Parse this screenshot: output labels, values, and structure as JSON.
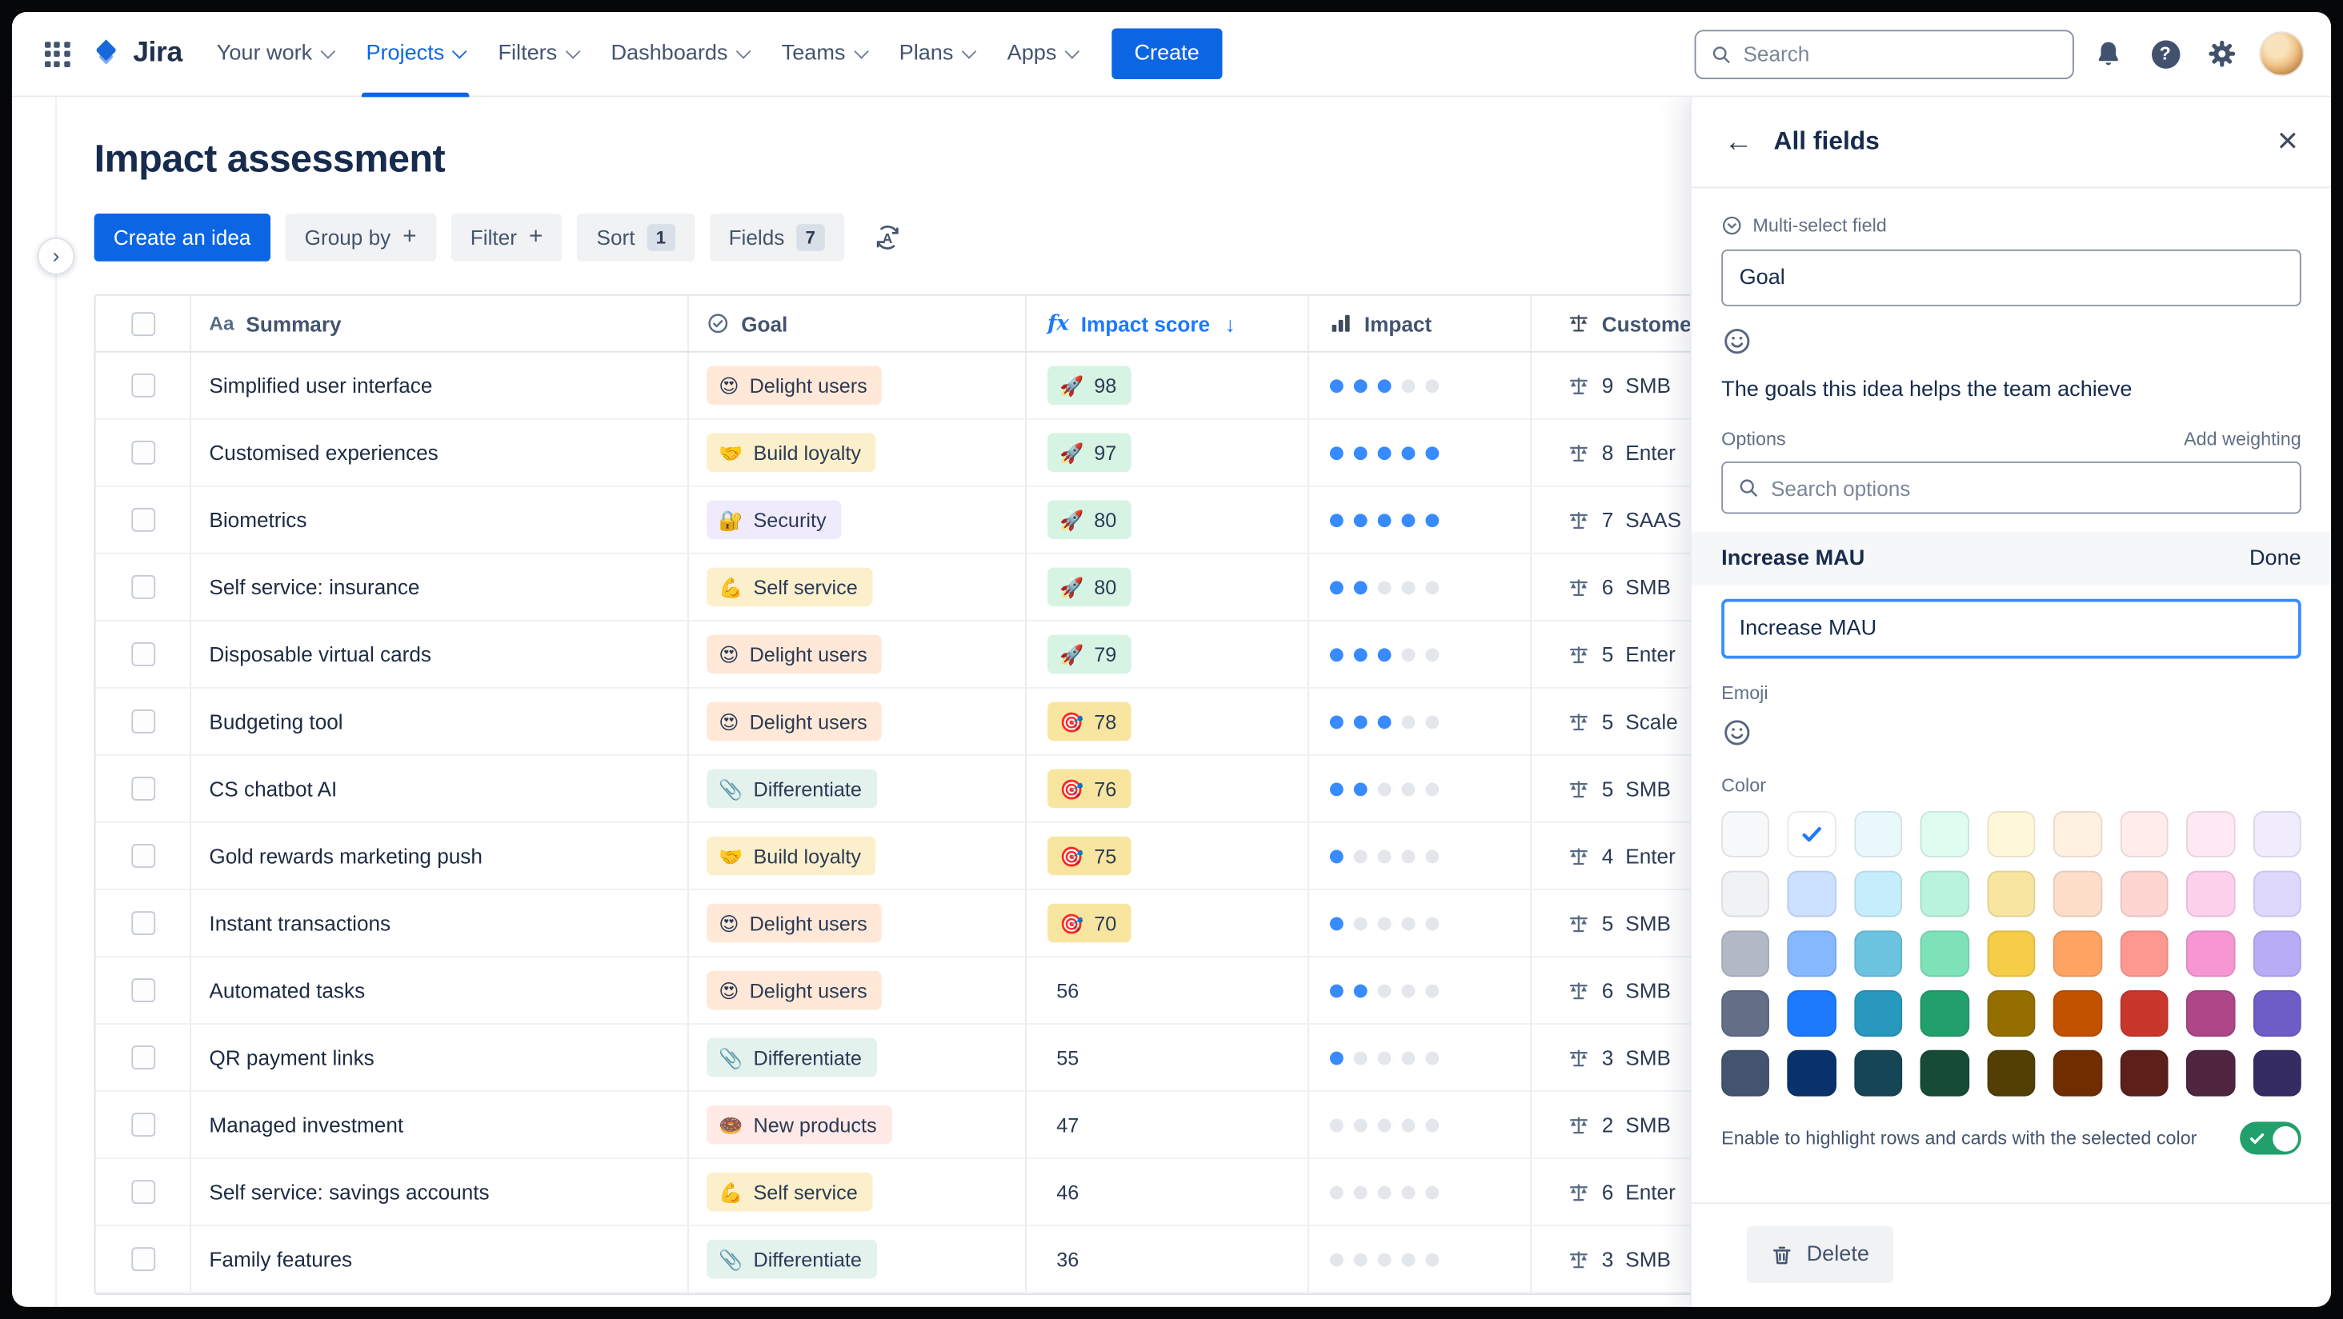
{
  "nav": {
    "logo_text": "Jira",
    "items": [
      "Your work",
      "Projects",
      "Filters",
      "Dashboards",
      "Teams",
      "Plans",
      "Apps"
    ],
    "active_item": "Projects",
    "create_label": "Create",
    "search_placeholder": "Search"
  },
  "icons": {
    "plus": "+",
    "sort_arrow_desc": "↓",
    "summary_field": "Aa",
    "formula": "fx",
    "back_arrow": "←",
    "close": "×",
    "chevron_right": "›",
    "help": "?"
  },
  "page": {
    "title": "Impact assessment",
    "toolbar": {
      "create_idea_label": "Create an idea",
      "group_by_label": "Group by",
      "filter_label": "Filter",
      "sort_label": "Sort",
      "sort_count": "1",
      "fields_label": "Fields",
      "fields_count": "7"
    }
  },
  "table": {
    "columns": [
      {
        "label": "Summary",
        "icon": "Aa"
      },
      {
        "label": "Goal",
        "icon": "circle-check"
      },
      {
        "label": "Impact score",
        "icon": "formula",
        "sort": "desc"
      },
      {
        "label": "Impact",
        "icon": "bar-chart"
      },
      {
        "label": "Customer",
        "icon": "scale"
      }
    ],
    "rows": [
      {
        "summary": "Simplified user interface",
        "goal": {
          "label": "Delight users",
          "emoji": "😍",
          "bg": "#ffe8d7"
        },
        "score": {
          "value": "98",
          "emoji": "🚀",
          "bg": "#d6f3e3"
        },
        "impact": 3,
        "customer": {
          "count": "9",
          "segment": "SMB"
        }
      },
      {
        "summary": "Customised experiences",
        "goal": {
          "label": "Build loyalty",
          "emoji": "🤝",
          "bg": "#fbf0cb"
        },
        "score": {
          "value": "97",
          "emoji": "🚀",
          "bg": "#d6f3e3"
        },
        "impact": 5,
        "customer": {
          "count": "8",
          "segment": "Enter"
        }
      },
      {
        "summary": "Biometrics",
        "goal": {
          "label": "Security",
          "emoji": "🔐",
          "bg": "#efeafc"
        },
        "score": {
          "value": "80",
          "emoji": "🚀",
          "bg": "#d6f3e3"
        },
        "impact": 5,
        "customer": {
          "count": "7",
          "segment": "SAAS"
        }
      },
      {
        "summary": "Self service: insurance",
        "goal": {
          "label": "Self service",
          "emoji": "💪",
          "bg": "#fbf0cb"
        },
        "score": {
          "value": "80",
          "emoji": "🚀",
          "bg": "#d6f3e3"
        },
        "impact": 2,
        "customer": {
          "count": "6",
          "segment": "SMB"
        }
      },
      {
        "summary": "Disposable virtual cards",
        "goal": {
          "label": "Delight users",
          "emoji": "😍",
          "bg": "#ffe8d7"
        },
        "score": {
          "value": "79",
          "emoji": "🚀",
          "bg": "#d6f3e3"
        },
        "impact": 3,
        "customer": {
          "count": "5",
          "segment": "Enter"
        }
      },
      {
        "summary": "Budgeting tool",
        "goal": {
          "label": "Delight users",
          "emoji": "😍",
          "bg": "#ffe8d7"
        },
        "score": {
          "value": "78",
          "emoji": "🎯",
          "bg": "#f8e6a0"
        },
        "impact": 3,
        "customer": {
          "count": "5",
          "segment": "Scale"
        }
      },
      {
        "summary": "CS chatbot AI",
        "goal": {
          "label": "Differentiate",
          "emoji": "📎",
          "bg": "#e4f2ee"
        },
        "score": {
          "value": "76",
          "emoji": "🎯",
          "bg": "#f8e6a0"
        },
        "impact": 2,
        "customer": {
          "count": "5",
          "segment": "SMB"
        }
      },
      {
        "summary": "Gold rewards marketing push",
        "goal": {
          "label": "Build loyalty",
          "emoji": "🤝",
          "bg": "#fbf0cb"
        },
        "score": {
          "value": "75",
          "emoji": "🎯",
          "bg": "#f8e6a0"
        },
        "impact": 1,
        "customer": {
          "count": "4",
          "segment": "Enter"
        }
      },
      {
        "summary": "Instant transactions",
        "goal": {
          "label": "Delight users",
          "emoji": "😍",
          "bg": "#ffe8d7"
        },
        "score": {
          "value": "70",
          "emoji": "🎯",
          "bg": "#f8e6a0"
        },
        "impact": 1,
        "customer": {
          "count": "5",
          "segment": "SMB"
        }
      },
      {
        "summary": "Automated tasks",
        "goal": {
          "label": "Delight users",
          "emoji": "😍",
          "bg": "#ffe8d7"
        },
        "score": {
          "value": "56"
        },
        "impact": 2,
        "customer": {
          "count": "6",
          "segment": "SMB"
        }
      },
      {
        "summary": "QR payment links",
        "goal": {
          "label": "Differentiate",
          "emoji": "📎",
          "bg": "#e4f2ee"
        },
        "score": {
          "value": "55"
        },
        "impact": 1,
        "customer": {
          "count": "3",
          "segment": "SMB"
        }
      },
      {
        "summary": "Managed investment",
        "goal": {
          "label": "New products",
          "emoji": "🍩",
          "bg": "#ffe9e6"
        },
        "score": {
          "value": "47"
        },
        "impact": 0,
        "customer": {
          "count": "2",
          "segment": "SMB"
        }
      },
      {
        "summary": "Self service: savings accounts",
        "goal": {
          "label": "Self service",
          "emoji": "💪",
          "bg": "#fbf0cb"
        },
        "score": {
          "value": "46"
        },
        "impact": 0,
        "customer": {
          "count": "6",
          "segment": "Enter"
        }
      },
      {
        "summary": "Family features",
        "goal": {
          "label": "Differentiate",
          "emoji": "📎",
          "bg": "#e4f2ee"
        },
        "score": {
          "value": "36"
        },
        "impact": 0,
        "customer": {
          "count": "3",
          "segment": "SMB"
        }
      }
    ]
  },
  "panel": {
    "title": "All fields",
    "field_type": "Multi-select field",
    "field_name": "Goal",
    "description": "The goals this idea helps the team achieve",
    "options_label": "Options",
    "add_weighting_label": "Add weighting",
    "search_placeholder": "Search options",
    "option_title": "Increase MAU",
    "done_label": "Done",
    "option_value": "Increase MAU",
    "emoji_label": "Emoji",
    "color_label": "Color",
    "palette": [
      [
        "#f7f8f9",
        "#ffffff",
        "#e9f9fb",
        "#dffcf0",
        "#fff8d8",
        "#fff0e0",
        "#ffeceb",
        "#ffe9f2",
        "#f0ebfd"
      ],
      [
        "#f1f2f4",
        "#cce0ff",
        "#c6edfb",
        "#baf3db",
        "#f8e6a0",
        "#fedec8",
        "#ffd5d2",
        "#fdd0ec",
        "#dfd8fd"
      ],
      [
        "#b3b9c4",
        "#85b8ff",
        "#6cc3e0",
        "#7ee2b8",
        "#f5cd47",
        "#fea362",
        "#fd9891",
        "#f797d2",
        "#b8acf6"
      ],
      [
        "#626f86",
        "#1d7afc",
        "#2898bd",
        "#22a06b",
        "#946f00",
        "#c25100",
        "#c9372c",
        "#ae4787",
        "#6e5dc6"
      ],
      [
        "#44546f",
        "#09326c",
        "#164555",
        "#164b35",
        "#533f04",
        "#702e00",
        "#5d1f1a",
        "#50253f",
        "#352c63"
      ]
    ],
    "selected_color": {
      "row": 0,
      "col": 1
    },
    "highlight_label": "Enable to highlight rows and cards with the selected color",
    "highlight_on": true,
    "delete_label": "Delete"
  },
  "colors": {
    "accent": "#0c66e4",
    "sorted_header": "#1d7afc",
    "dot_filled": "#388bff",
    "dot_empty": "#e3e6eb",
    "toggle_on": "#22a06b",
    "check": "#1d7afc"
  }
}
